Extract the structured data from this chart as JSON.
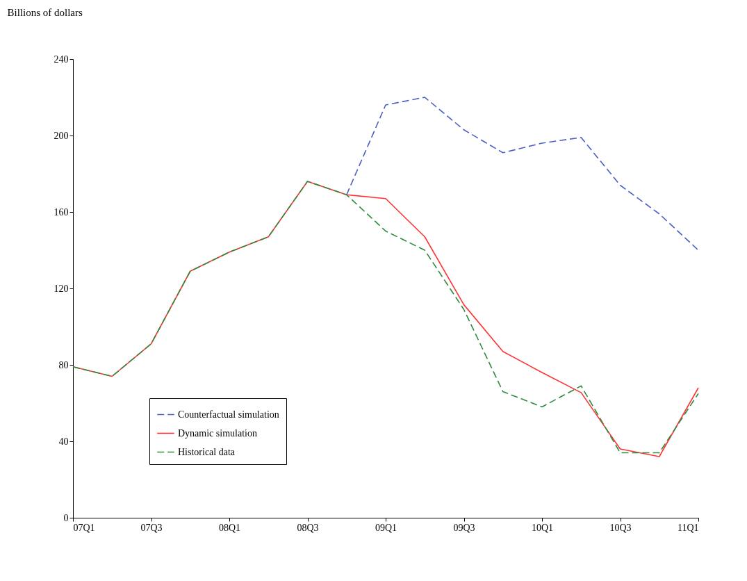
{
  "chart_data": {
    "type": "line",
    "ylabel": "Billions of dollars",
    "categories": [
      "07Q1",
      null,
      "07Q3",
      null,
      "08Q1",
      null,
      "08Q3",
      null,
      "09Q1",
      null,
      "09Q3",
      null,
      "10Q1",
      null,
      "10Q3",
      null,
      "11Q1"
    ],
    "series": [
      {
        "name": "Counterfactual simulation",
        "color": "#4a5fc1",
        "line_style": "dashed",
        "values": [
          null,
          null,
          null,
          null,
          null,
          null,
          null,
          169,
          216,
          220,
          203,
          191,
          196,
          199,
          174,
          159,
          140
        ]
      },
      {
        "name": "Dynamic  simulation",
        "color": "#ff3333",
        "line_style": "solid",
        "values": [
          79,
          74,
          91,
          129,
          139,
          147,
          176,
          169,
          167,
          147,
          111.5,
          87,
          76,
          65.5,
          36,
          32,
          68
        ]
      },
      {
        "name": "Historical data",
        "color": "#2e8b3e",
        "line_style": "dashed",
        "values": [
          79,
          74,
          91,
          129,
          139,
          147,
          176,
          169,
          150,
          140,
          109,
          66,
          58,
          69,
          34,
          34,
          65
        ]
      }
    ],
    "ylim": [
      0,
      240
    ],
    "yticks": [
      0,
      40,
      80,
      120,
      160,
      200,
      240
    ],
    "grid": false,
    "legend": "bottom left"
  }
}
